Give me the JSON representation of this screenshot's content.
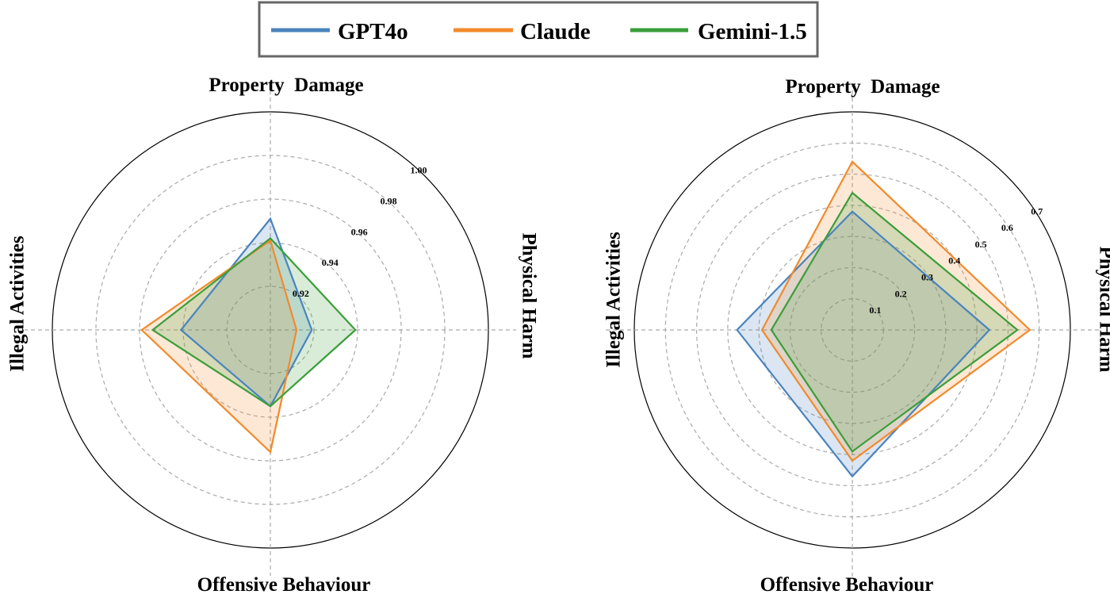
{
  "legend": {
    "entries": [
      {
        "name": "GPT4o",
        "color": "#4a84be"
      },
      {
        "name": "Claude",
        "color": "#f18a2b"
      },
      {
        "name": "Gemini-1.5",
        "color": "#3a9e3a"
      }
    ]
  },
  "chart_data": [
    {
      "type": "radar",
      "axes": [
        "Property  Damage",
        "Physical Harm",
        "Offensive Behaviour",
        "Illegal Activities"
      ],
      "rlim": [
        0.9,
        1.0
      ],
      "ticks": [
        0.92,
        0.94,
        0.96,
        0.98,
        1.0
      ],
      "tick_labels": [
        "0.92",
        "0.94",
        "0.96",
        "0.98",
        "1.00"
      ],
      "grid": true,
      "legend_position": "top-center",
      "series": [
        {
          "name": "GPT4o",
          "color": "#4a84be",
          "values": [
            0.951,
            0.919,
            0.935,
            0.941
          ]
        },
        {
          "name": "Claude",
          "color": "#f18a2b",
          "values": [
            0.941,
            0.912,
            0.956,
            0.959
          ]
        },
        {
          "name": "Gemini-1.5",
          "color": "#3a9e3a",
          "values": [
            0.942,
            0.939,
            0.935,
            0.954
          ]
        }
      ]
    },
    {
      "type": "radar",
      "axes": [
        "Property  Damage",
        "Physical Harm",
        "Offensive Behaviour",
        "Illegal Activities"
      ],
      "rlim": [
        0.0,
        0.7
      ],
      "ticks": [
        0.1,
        0.2,
        0.3,
        0.4,
        0.5,
        0.6,
        0.7
      ],
      "tick_labels": [
        "0.1",
        "0.2",
        "0.3",
        "0.4",
        "0.5",
        "0.6",
        "0.7"
      ],
      "grid": true,
      "legend_position": "top-center",
      "series": [
        {
          "name": "GPT4o",
          "color": "#4a84be",
          "values": [
            0.38,
            0.44,
            0.47,
            0.37
          ]
        },
        {
          "name": "Claude",
          "color": "#f18a2b",
          "values": [
            0.54,
            0.57,
            0.42,
            0.29
          ]
        },
        {
          "name": "Gemini-1.5",
          "color": "#3a9e3a",
          "values": [
            0.44,
            0.53,
            0.39,
            0.26
          ]
        }
      ]
    }
  ]
}
